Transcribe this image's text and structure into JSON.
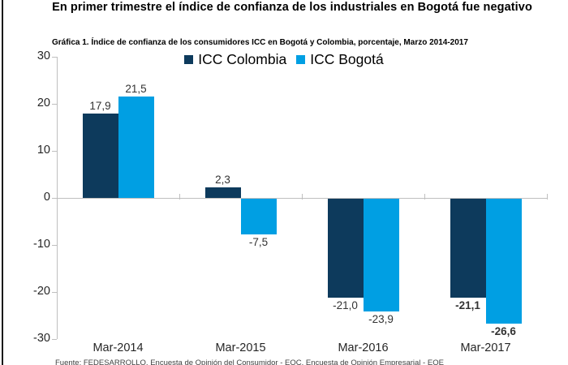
{
  "page": {
    "headline": "En primer trimestre el índice de confianza de los industriales en Bogotá fue negativo",
    "source_note": "Fuente: FEDESARROLLO, Encuesta de Opinión del Consumidor - EOC, Encuesta de Opinión Empresarial - EOE"
  },
  "chart_data": {
    "type": "bar",
    "title": "Gráfica 1.  Índice de confianza de los consumidores ICC en Bogotá y Colombia, porcentaje, Marzo 2014-2017",
    "categories": [
      "Mar-2014",
      "Mar-2015",
      "Mar-2016",
      "Mar-2017"
    ],
    "series": [
      {
        "name": "ICC Colombia",
        "color": "#0d3a5c",
        "values": [
          17.9,
          2.3,
          -21.0,
          -21.1
        ],
        "labels": [
          "17,9",
          "2,3",
          "-21,0",
          "-21,1"
        ],
        "bold_labels": [
          false,
          false,
          false,
          true
        ]
      },
      {
        "name": "ICC Bogotá",
        "color": "#009fe3",
        "values": [
          21.5,
          -7.5,
          -23.9,
          -26.6
        ],
        "labels": [
          "21,5",
          "-7,5",
          "-23,9",
          "-26,6"
        ],
        "bold_labels": [
          false,
          false,
          false,
          true
        ]
      }
    ],
    "xlabel": "",
    "ylabel": "",
    "ylim": [
      -30,
      30
    ],
    "yticks": [
      30,
      20,
      10,
      0,
      -10,
      -20,
      -30
    ],
    "grid": false,
    "legend_position": "top"
  }
}
